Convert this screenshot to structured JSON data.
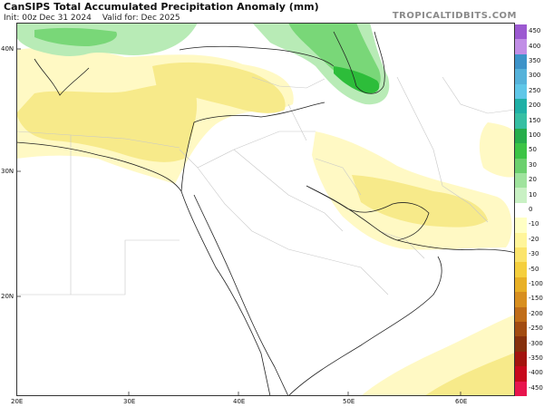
{
  "header": {
    "title": "CanSIPS Total Accumulated Precipitation Anomaly (mm)",
    "init": "Init: 00z Dec 31 2024",
    "valid": "Valid for: Dec 2025",
    "brand": "TROPICALTIDBITS.COM"
  },
  "axes": {
    "lon_ticks": [
      "20E",
      "30E",
      "40E",
      "50E",
      "60E"
    ],
    "lat_ticks": [
      "40N",
      "30N",
      "20N"
    ]
  },
  "colorbar": {
    "labels": [
      "450",
      "400",
      "350",
      "300",
      "250",
      "200",
      "150",
      "100",
      "50",
      "30",
      "20",
      "10",
      "0",
      "-10",
      "-20",
      "-30",
      "-50",
      "-100",
      "-150",
      "-200",
      "-250",
      "-300",
      "-350",
      "-400",
      "-450"
    ],
    "colors": [
      "#9c59d1",
      "#c18ee6",
      "#3d93c9",
      "#55b2da",
      "#5fc7e8",
      "#1fb0a6",
      "#36bfa3",
      "#27ad4b",
      "#3cc445",
      "#6bd06d",
      "#9fe39d",
      "#c9f1c4",
      "#ffffff",
      "#ffffc4",
      "#fff59a",
      "#fbe46b",
      "#f5cf3d",
      "#e8b026",
      "#d88f1f",
      "#c06d18",
      "#a24c11",
      "#86300c",
      "#a3140e",
      "#c7081c",
      "#e8144d"
    ]
  },
  "colors": {
    "map_background": "#ffffff",
    "border_line": "#c8c8c8",
    "coast_line": "#222222",
    "dry_light": "#fff9c4",
    "dry_medium": "#f7ea8a",
    "wet_light": "#b8ebb6",
    "wet_medium": "#79d778",
    "wet_strong": "#2dbd3a"
  }
}
